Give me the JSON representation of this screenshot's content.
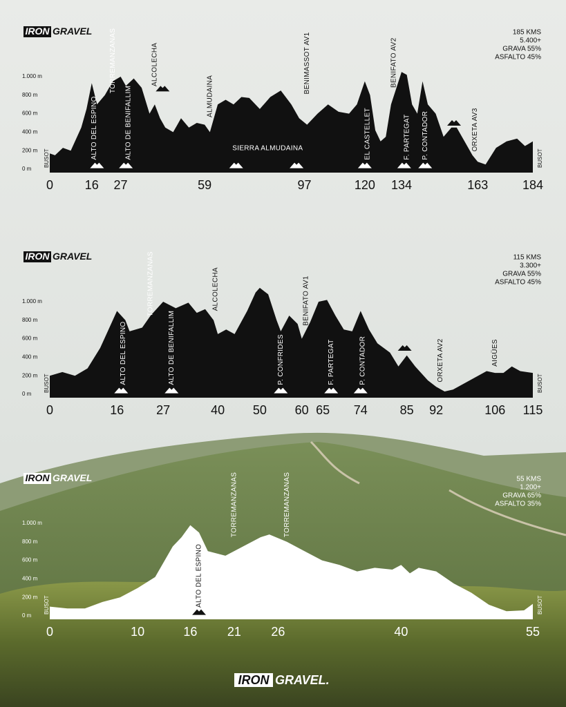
{
  "chart_data": [
    {
      "type": "area",
      "color": "#111111",
      "stats": [
        "185 KMS",
        "5.400+",
        "GRAVA 55%",
        "ASFALTO 45%"
      ],
      "start_label": "BUSOT",
      "end_label": "BUSOT",
      "xlim": [
        0,
        184
      ],
      "xticks": [
        0,
        16,
        27,
        59,
        97,
        120,
        134,
        163,
        184
      ],
      "ylim": [
        0,
        1000
      ],
      "yticks": [
        {
          "value": 0,
          "label": "0 m"
        },
        {
          "value": 200,
          "label": "200 m"
        },
        {
          "value": 400,
          "label": "400 m"
        },
        {
          "value": 600,
          "label": "600 m"
        },
        {
          "value": 800,
          "label": "800 m"
        },
        {
          "value": 1000,
          "label": "1.000 m"
        }
      ],
      "x": [
        0,
        2,
        5,
        8,
        12,
        14,
        16,
        18,
        21,
        24,
        27,
        29,
        32,
        35,
        38,
        40,
        42,
        44,
        47,
        50,
        53,
        56,
        59,
        61,
        64,
        67,
        70,
        73,
        76,
        80,
        84,
        88,
        92,
        95,
        98,
        102,
        106,
        110,
        114,
        117,
        120,
        122,
        124,
        126,
        128,
        130,
        134,
        136,
        138,
        140,
        142,
        144,
        147,
        150,
        153,
        155,
        158,
        161,
        163,
        166,
        170,
        174,
        178,
        181,
        184
      ],
      "values": [
        170,
        150,
        230,
        200,
        450,
        650,
        930,
        700,
        800,
        950,
        1000,
        900,
        980,
        880,
        600,
        700,
        550,
        450,
        400,
        550,
        450,
        500,
        480,
        400,
        700,
        750,
        700,
        780,
        770,
        650,
        780,
        850,
        700,
        550,
        480,
        600,
        700,
        620,
        600,
        700,
        950,
        800,
        420,
        300,
        350,
        700,
        1050,
        1020,
        700,
        600,
        950,
        700,
        600,
        350,
        450,
        450,
        300,
        150,
        80,
        50,
        230,
        300,
        330,
        250,
        300
      ],
      "annotations": [
        {
          "text": "ALTO DEL ESPINO",
          "x": 17,
          "y": 100
        },
        {
          "text": "ALTO DE BENIFALLIM",
          "x": 30,
          "y": 100
        },
        {
          "text": "EL CASTELLET",
          "x": 121,
          "y": 100
        },
        {
          "text": "F. PARTEGAT",
          "x": 136,
          "y": 100
        },
        {
          "text": "P. CONTADOR",
          "x": 143,
          "y": 100
        },
        {
          "text": "TORREMANZANAS",
          "x": 24,
          "y": 820
        },
        {
          "text": "ALCOLECHA",
          "x": 40,
          "y": 895
        },
        {
          "text": "ALMUDAINA",
          "x": 61,
          "y": 560
        },
        {
          "text": "BENIMASSOT AV1",
          "x": 98,
          "y": 810
        },
        {
          "text": "BENIFATO AV2",
          "x": 131,
          "y": 880
        },
        {
          "text": "ORXETA AV3",
          "x": 162,
          "y": 190
        }
      ],
      "captions": [
        {
          "text": "SIERRA ALMUDAINA",
          "x": 83,
          "y": 224
        }
      ],
      "icons": [
        {
          "x": 18,
          "y": 40
        },
        {
          "x": 29,
          "y": 40
        },
        {
          "x": 43,
          "y": 870
        },
        {
          "x": 71,
          "y": 40
        },
        {
          "x": 94,
          "y": 40
        },
        {
          "x": 120,
          "y": 40
        },
        {
          "x": 135,
          "y": 40
        },
        {
          "x": 143,
          "y": 40
        },
        {
          "x": 154,
          "y": 500
        }
      ]
    },
    {
      "type": "area",
      "color": "#111111",
      "stats": [
        "115 KMS",
        "3.300+",
        "GRAVA 55%",
        "ASFALTO 45%"
      ],
      "start_label": "BUSOT",
      "end_label": "BUSOT",
      "xlim": [
        0,
        115
      ],
      "xticks": [
        0,
        16,
        27,
        40,
        50,
        60,
        65,
        74,
        85,
        92,
        106,
        115
      ],
      "ylim": [
        0,
        1000
      ],
      "yticks": [
        {
          "value": 0,
          "label": "0 m"
        },
        {
          "value": 200,
          "label": "200 m"
        },
        {
          "value": 400,
          "label": "400 m"
        },
        {
          "value": 600,
          "label": "600 m"
        },
        {
          "value": 800,
          "label": "800 m"
        },
        {
          "value": 1000,
          "label": "1.000 m"
        }
      ],
      "x": [
        0,
        3,
        6,
        9,
        12,
        14,
        16,
        18,
        19,
        22,
        24,
        27,
        30,
        33,
        35,
        37,
        39,
        40,
        42,
        44,
        47,
        49,
        50,
        52,
        54,
        55,
        57,
        59,
        60,
        62,
        64,
        66,
        68,
        70,
        72,
        74,
        76,
        78,
        81,
        83,
        85,
        87,
        90,
        92,
        94,
        96,
        100,
        104,
        106,
        108,
        110,
        112,
        115
      ],
      "values": [
        200,
        240,
        200,
        280,
        500,
        700,
        900,
        800,
        680,
        720,
        850,
        1000,
        930,
        990,
        880,
        920,
        800,
        650,
        700,
        650,
        900,
        1100,
        1150,
        1080,
        800,
        680,
        850,
        760,
        600,
        780,
        1000,
        1020,
        850,
        700,
        680,
        900,
        700,
        550,
        450,
        300,
        420,
        300,
        150,
        80,
        30,
        50,
        150,
        250,
        230,
        230,
        300,
        250,
        230
      ],
      "annotations": [
        {
          "text": "ALTO DEL ESPINO",
          "x": 17.5,
          "y": 100
        },
        {
          "text": "ALTO DE BENIFALLIM",
          "x": 29,
          "y": 100
        },
        {
          "text": "P. CONFRIDES",
          "x": 55,
          "y": 100
        },
        {
          "text": "F. PARTEGAT",
          "x": 67,
          "y": 100
        },
        {
          "text": "P. CONTADOR",
          "x": 74.5,
          "y": 100
        },
        {
          "text": "TORREMANZANAS",
          "x": 24,
          "y": 840
        },
        {
          "text": "ALCOLECHA",
          "x": 39.5,
          "y": 900
        },
        {
          "text": "BENIFATO AV1",
          "x": 61,
          "y": 740
        },
        {
          "text": "ORXETA AV2",
          "x": 93,
          "y": 130
        },
        {
          "text": "AIGÜES",
          "x": 106,
          "y": 300
        }
      ],
      "icons": [
        {
          "x": 17,
          "y": 40
        },
        {
          "x": 29,
          "y": 40
        },
        {
          "x": 55,
          "y": 40
        },
        {
          "x": 67,
          "y": 40
        },
        {
          "x": 74,
          "y": 40
        },
        {
          "x": 84.5,
          "y": 500
        }
      ]
    },
    {
      "type": "area",
      "color": "#ffffff",
      "stats": [
        "55 KMS",
        "1.200+",
        "GRAVA 65%",
        "ASFALTO 35%"
      ],
      "start_label": "BUSOT",
      "end_label": "BUSOT",
      "xlim": [
        0,
        55
      ],
      "xticks": [
        0,
        10,
        16,
        21,
        26,
        40,
        55
      ],
      "ylim": [
        0,
        1000
      ],
      "yticks": [
        {
          "value": 0,
          "label": "0 m"
        },
        {
          "value": 200,
          "label": "200 m"
        },
        {
          "value": 400,
          "label": "400 m"
        },
        {
          "value": 600,
          "label": "600 m"
        },
        {
          "value": 800,
          "label": "800 m"
        },
        {
          "value": 1000,
          "label": "1.000 m"
        }
      ],
      "x": [
        0,
        2,
        4,
        6,
        8,
        10,
        12,
        14,
        15,
        16,
        17,
        18,
        20,
        22,
        24,
        25,
        27,
        29,
        31,
        33,
        35,
        37,
        39,
        40,
        41,
        42,
        44,
        46,
        48,
        50,
        52,
        54,
        55
      ],
      "values": [
        100,
        80,
        80,
        150,
        200,
        300,
        420,
        750,
        850,
        980,
        900,
        700,
        650,
        750,
        850,
        880,
        800,
        700,
        600,
        550,
        480,
        520,
        500,
        550,
        460,
        520,
        480,
        350,
        250,
        120,
        50,
        60,
        130
      ],
      "annotations": [
        {
          "text": "ALTO DEL ESPINO",
          "x": 17,
          "y": 90
        },
        {
          "text": "TORREMANZANAS",
          "x": 21,
          "y": 850
        },
        {
          "text": "TORREMANZANAS",
          "x": 27,
          "y": 850
        }
      ],
      "icons": [
        {
          "x": 17,
          "y": 40
        }
      ]
    }
  ],
  "brand": [
    "IRON",
    "GRAVEL"
  ],
  "footer_brand": [
    "IRON",
    "GRAVEL."
  ]
}
